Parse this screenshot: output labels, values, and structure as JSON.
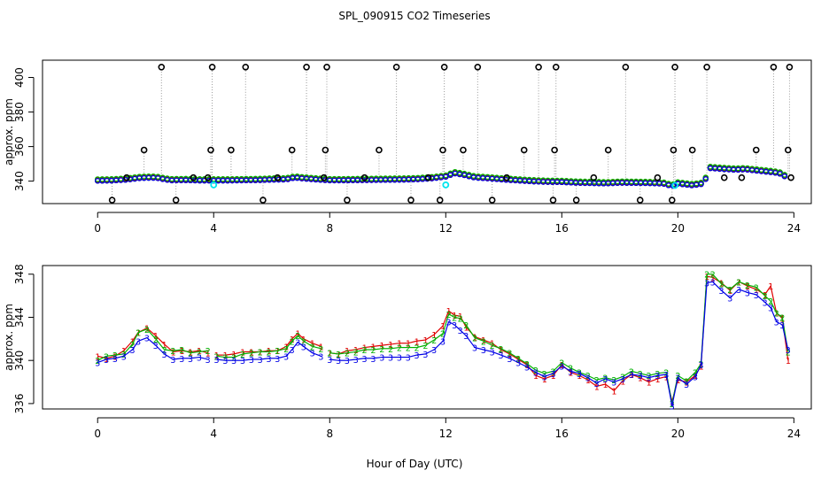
{
  "title": "SPL_090915  CO2 Timeseries",
  "xlabel": "Hour of Day (UTC)",
  "colors": {
    "black": "#000000",
    "red": "#e00000",
    "green": "#00b000",
    "blue": "#0000e6",
    "cyan": "#00e5ee",
    "connector": "#9a9a9a"
  },
  "chart_data": [
    {
      "type": "scatter",
      "title": "SPL_090915  CO2 Timeseries",
      "xlabel": "",
      "ylabel": "approx. ppm",
      "xlim": [
        -1.9,
        24.6
      ],
      "ylim": [
        327,
        410
      ],
      "xticks": [
        0,
        4,
        8,
        12,
        16,
        20,
        24
      ],
      "yticks": [
        340,
        360,
        380,
        400
      ],
      "baseline_series": {
        "name": "sensors 1-3 (overlapping circles)",
        "hours": [
          0.0,
          0.5,
          1.0,
          1.5,
          2.0,
          2.5,
          3.0,
          3.5,
          4.0,
          4.5,
          5.0,
          5.5,
          6.0,
          6.5,
          6.8,
          7.0,
          7.5,
          8.0,
          8.5,
          9.0,
          9.5,
          10.0,
          10.5,
          11.0,
          11.5,
          12.0,
          12.3,
          12.6,
          13.0,
          13.5,
          14.0,
          14.5,
          15.0,
          15.5,
          16.0,
          16.5,
          17.0,
          17.5,
          18.0,
          18.5,
          19.0,
          19.5,
          19.8,
          20.0,
          20.5,
          20.9,
          21.1,
          21.5,
          22.0,
          22.3,
          22.6,
          23.0,
          23.3,
          23.6,
          23.8
        ],
        "ppm": [
          340.2,
          340.3,
          340.8,
          341.8,
          341.9,
          340.4,
          340.5,
          340.3,
          340.3,
          340.3,
          340.4,
          340.5,
          340.8,
          340.9,
          342.0,
          341.6,
          340.9,
          340.4,
          340.4,
          340.5,
          340.6,
          340.7,
          340.8,
          341.0,
          341.5,
          342.5,
          344.5,
          343.6,
          342.0,
          341.5,
          340.8,
          340.3,
          339.8,
          339.5,
          339.4,
          339.0,
          338.8,
          338.6,
          339.0,
          338.9,
          338.8,
          338.5,
          337.0,
          338.5,
          337.5,
          338.5,
          347.5,
          347.0,
          346.5,
          346.8,
          346.2,
          345.5,
          345.0,
          344.0,
          341.0
        ]
      },
      "outlier_points_hours": [
        0.5,
        1.0,
        1.6,
        2.2,
        2.7,
        3.3,
        3.8,
        3.9,
        3.95,
        4.6,
        5.1,
        5.7,
        6.2,
        6.7,
        7.2,
        7.8,
        7.85,
        7.9,
        8.6,
        9.2,
        9.7,
        10.3,
        10.8,
        11.4,
        11.8,
        11.9,
        11.95,
        12.6,
        13.1,
        13.6,
        14.1,
        14.7,
        15.2,
        15.7,
        15.75,
        15.8,
        16.5,
        17.1,
        17.6,
        18.2,
        18.7,
        19.3,
        19.8,
        19.85,
        19.9,
        20.5,
        21.0,
        21.6,
        22.2,
        22.7,
        23.3,
        23.8,
        23.85,
        23.9
      ],
      "outlier_points_ppm": [
        329,
        342,
        358,
        406,
        329,
        342,
        342,
        358,
        406,
        358,
        406,
        329,
        342,
        358,
        406,
        342,
        358,
        406,
        329,
        342,
        358,
        406,
        329,
        342,
        329,
        358,
        406,
        358,
        406,
        329,
        342,
        358,
        406,
        329,
        358,
        406,
        329,
        342,
        358,
        406,
        329,
        342,
        329,
        358,
        406,
        358,
        406,
        342,
        342,
        358,
        406,
        358,
        406,
        342
      ],
      "cyan_points_hours": [
        4.0,
        12.0,
        19.9
      ],
      "cyan_points_ppm": [
        337.8,
        337.8,
        337.5
      ]
    },
    {
      "type": "line",
      "title": "",
      "xlabel": "Hour of Day (UTC)",
      "ylabel": "approx. ppm",
      "xlim": [
        -1.9,
        24.6
      ],
      "ylim": [
        335.5,
        348.8
      ],
      "xticks": [
        0,
        4,
        8,
        12,
        16,
        20,
        24
      ],
      "yticks": [
        336,
        340,
        344,
        348
      ],
      "gaps_hours": [
        [
          4.0,
          4.1
        ],
        [
          7.9,
          8.0
        ]
      ],
      "x": [
        0.0,
        0.3,
        0.6,
        0.9,
        1.2,
        1.4,
        1.7,
        2.0,
        2.3,
        2.6,
        2.9,
        3.2,
        3.5,
        3.8,
        4.1,
        4.4,
        4.7,
        5.0,
        5.3,
        5.6,
        5.9,
        6.2,
        6.5,
        6.7,
        6.9,
        7.1,
        7.4,
        7.7,
        8.0,
        8.3,
        8.6,
        8.9,
        9.2,
        9.5,
        9.8,
        10.1,
        10.4,
        10.7,
        11.0,
        11.3,
        11.6,
        11.9,
        12.1,
        12.3,
        12.5,
        12.7,
        13.0,
        13.3,
        13.6,
        13.9,
        14.2,
        14.5,
        14.8,
        15.1,
        15.4,
        15.7,
        16.0,
        16.3,
        16.6,
        16.9,
        17.2,
        17.5,
        17.8,
        18.1,
        18.4,
        18.7,
        19.0,
        19.3,
        19.6,
        19.8,
        20.0,
        20.3,
        20.6,
        20.8,
        21.0,
        21.2,
        21.5,
        21.8,
        22.1,
        22.4,
        22.7,
        23.0,
        23.2,
        23.4,
        23.6,
        23.8
      ],
      "series": [
        {
          "name": "1",
          "glyph": "1",
          "values": [
            340.4,
            340.2,
            340.4,
            340.9,
            341.8,
            342.6,
            343.0,
            342.3,
            341.5,
            340.8,
            340.9,
            340.8,
            340.9,
            340.7,
            340.5,
            340.5,
            340.6,
            340.8,
            340.8,
            340.8,
            340.9,
            340.9,
            341.3,
            342.0,
            342.5,
            342.0,
            341.6,
            341.3,
            340.7,
            340.6,
            340.9,
            341.0,
            341.2,
            341.3,
            341.4,
            341.5,
            341.6,
            341.6,
            341.8,
            341.9,
            342.4,
            343.2,
            344.6,
            344.2,
            344.1,
            343.1,
            342.2,
            341.9,
            341.6,
            341.0,
            340.6,
            340.1,
            339.6,
            338.6,
            338.3,
            338.6,
            339.6,
            338.9,
            338.6,
            338.2,
            337.6,
            337.8,
            337.2,
            338.1,
            338.7,
            338.4,
            338.0,
            338.3,
            338.5,
            336.2,
            338.2,
            338.0,
            338.6,
            339.5,
            347.8,
            347.7,
            347.2,
            346.5,
            347.3,
            346.9,
            346.6,
            346.1,
            346.9,
            344.4,
            343.9,
            340.0
          ]
        },
        {
          "name": "2",
          "glyph": "2",
          "values": [
            340.0,
            340.4,
            340.5,
            340.6,
            341.5,
            342.6,
            342.9,
            342.0,
            341.0,
            340.9,
            341.0,
            340.7,
            340.8,
            340.9,
            340.4,
            340.3,
            340.3,
            340.6,
            340.7,
            340.8,
            340.8,
            340.9,
            341.1,
            341.8,
            342.3,
            341.8,
            341.3,
            341.1,
            340.7,
            340.6,
            340.7,
            340.8,
            341.0,
            341.0,
            341.1,
            341.1,
            341.2,
            341.2,
            341.2,
            341.4,
            341.9,
            342.5,
            344.3,
            344.0,
            343.9,
            343.3,
            342.1,
            341.8,
            341.4,
            341.1,
            340.7,
            340.2,
            339.7,
            339.1,
            338.8,
            339.0,
            339.8,
            339.3,
            338.9,
            338.6,
            338.2,
            338.4,
            338.2,
            338.5,
            339.0,
            338.8,
            338.6,
            338.8,
            338.9,
            336.0,
            338.6,
            338.1,
            338.9,
            339.7,
            348.0,
            348.0,
            347.1,
            346.6,
            347.3,
            347.0,
            346.8,
            346.0,
            345.5,
            344.4,
            344.0,
            340.8
          ]
        },
        {
          "name": "3",
          "glyph": "3",
          "values": [
            339.8,
            340.1,
            340.2,
            340.4,
            341.0,
            341.8,
            342.1,
            341.4,
            340.6,
            340.1,
            340.2,
            340.2,
            340.3,
            340.1,
            340.1,
            340.0,
            340.0,
            340.0,
            340.1,
            340.1,
            340.2,
            340.2,
            340.4,
            341.0,
            341.7,
            341.3,
            340.7,
            340.4,
            340.1,
            340.0,
            340.0,
            340.1,
            340.2,
            340.2,
            340.3,
            340.3,
            340.3,
            340.3,
            340.5,
            340.6,
            341.0,
            341.8,
            343.6,
            343.3,
            342.8,
            342.3,
            341.2,
            341.0,
            340.8,
            340.5,
            340.2,
            339.8,
            339.4,
            338.9,
            338.5,
            338.8,
            339.5,
            339.0,
            338.8,
            338.4,
            337.9,
            338.3,
            338.0,
            338.3,
            338.7,
            338.6,
            338.4,
            338.6,
            338.7,
            335.8,
            338.4,
            337.8,
            338.5,
            339.6,
            347.2,
            347.3,
            346.5,
            345.8,
            346.6,
            346.3,
            346.1,
            345.4,
            344.9,
            343.6,
            343.3,
            341.0
          ]
        }
      ]
    }
  ]
}
